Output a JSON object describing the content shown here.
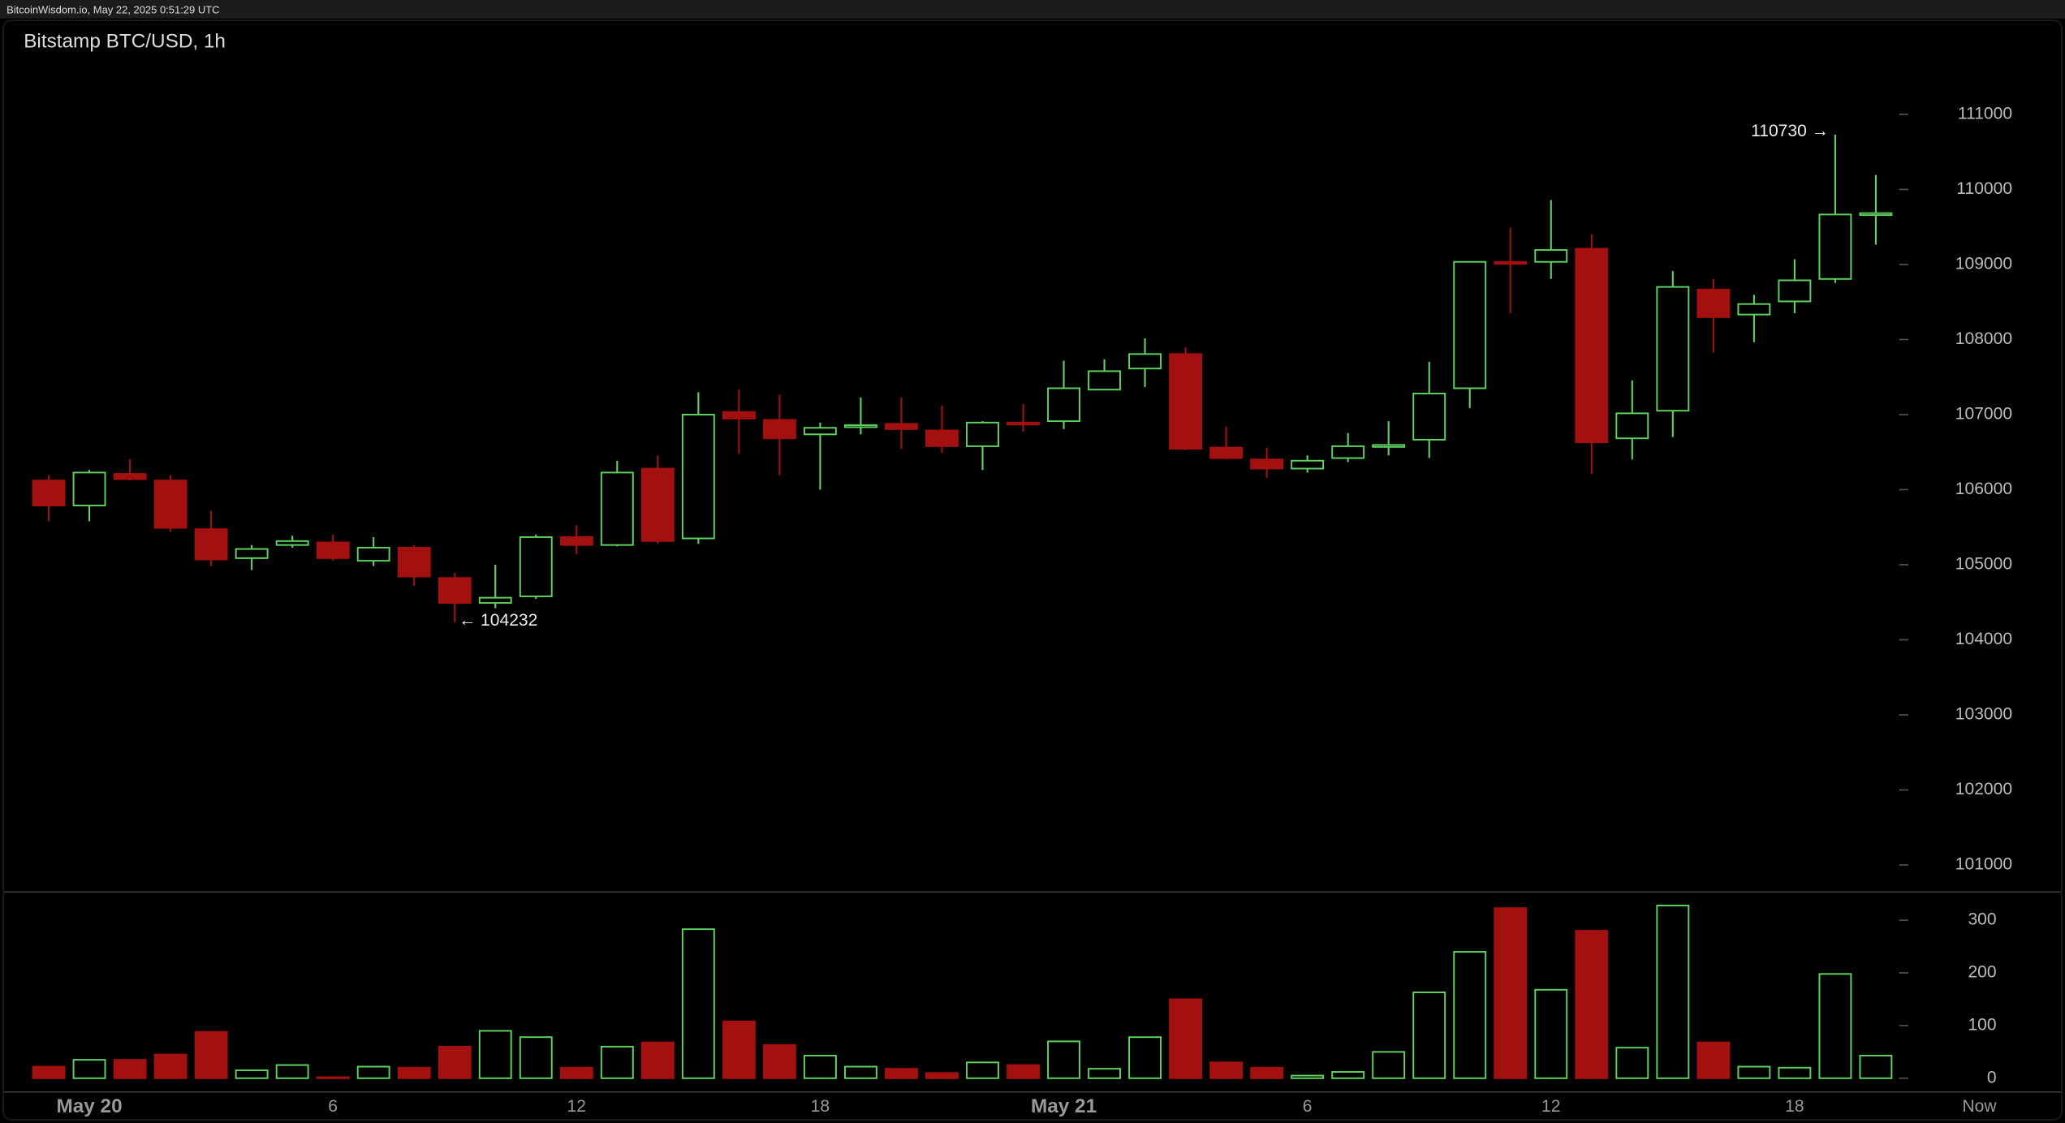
{
  "page_header": "BitcoinWisdom.io, May 22, 2025 0:51:29 UTC",
  "now_label": "Now",
  "annotations": [
    "110730 →",
    "← 104232"
  ],
  "chart_data": [
    {
      "type": "candlestick",
      "title": "Bitstamp BTC/USD, 1h",
      "categories": [
        null,
        "May 20",
        null,
        null,
        null,
        null,
        null,
        "6",
        null,
        null,
        null,
        null,
        null,
        "12",
        null,
        null,
        null,
        null,
        null,
        "18",
        null,
        null,
        null,
        null,
        null,
        "May 21",
        null,
        null,
        null,
        null,
        null,
        "6",
        null,
        null,
        null,
        null,
        null,
        "12",
        null,
        null,
        null,
        null,
        null,
        "18",
        null,
        null
      ],
      "open": [
        106122,
        105789,
        106210,
        106122,
        105474,
        105088,
        105263,
        105298,
        105053,
        105228,
        104824,
        104491,
        104579,
        105368,
        105263,
        106281,
        105351,
        107035,
        106930,
        106737,
        106842,
        106877,
        106789,
        106579,
        106894,
        106912,
        107333,
        107614,
        107807,
        106561,
        106403,
        106281,
        106421,
        106579,
        106666,
        107351,
        109035,
        109035,
        109210,
        106684,
        107052,
        108666,
        108333,
        108508,
        108807,
        109684
      ],
      "high": [
        106193,
        106263,
        106403,
        106193,
        105719,
        105263,
        105386,
        105403,
        105368,
        105263,
        104894,
        104999,
        105403,
        105526,
        106386,
        106456,
        107298,
        107333,
        107263,
        106894,
        107228,
        107228,
        107123,
        106912,
        107140,
        107719,
        107737,
        108017,
        107894,
        106842,
        106561,
        106456,
        106754,
        106912,
        107702,
        109035,
        109491,
        109859,
        109403,
        107456,
        108912,
        108807,
        108596,
        109070,
        110730,
        110193
      ],
      "low": [
        105579,
        105579,
        106122,
        105438,
        104982,
        104929,
        105228,
        105053,
        104982,
        104719,
        104232,
        104421,
        104544,
        105140,
        105245,
        105280,
        105280,
        106474,
        106193,
        106000,
        106737,
        106544,
        106491,
        106263,
        106772,
        106807,
        107333,
        107368,
        106526,
        106403,
        106158,
        106228,
        106368,
        106456,
        106421,
        107088,
        108351,
        108807,
        106210,
        106403,
        106701,
        107824,
        107965,
        108351,
        108754,
        109263
      ],
      "close": [
        105789,
        106228,
        106140,
        105491,
        105070,
        105210,
        105315,
        105088,
        105228,
        104842,
        104491,
        104561,
        105368,
        105263,
        106228,
        105315,
        107000,
        106947,
        106684,
        106824,
        106859,
        106807,
        106579,
        106894,
        106877,
        107351,
        107579,
        107807,
        106544,
        106421,
        106281,
        106386,
        106579,
        106596,
        107281,
        109035,
        109017,
        109193,
        106631,
        107017,
        108701,
        108298,
        108473,
        108789,
        109666,
        109684
      ],
      "up_color": "#5fd35f",
      "down_color": "#a31010",
      "ylim": [
        100650,
        112260
      ],
      "yticks": [
        101000,
        102000,
        103000,
        104000,
        105000,
        106000,
        107000,
        108000,
        109000,
        110000,
        111000
      ]
    },
    {
      "type": "bar",
      "values": [
        22,
        35,
        35,
        45,
        88,
        15,
        25,
        2,
        22,
        20,
        60,
        90,
        78,
        20,
        60,
        68,
        283,
        108,
        63,
        43,
        22,
        18,
        10,
        30,
        25,
        70,
        18,
        78,
        150,
        30,
        20,
        5,
        12,
        50,
        163,
        240,
        323,
        168,
        280,
        58,
        328,
        68,
        22,
        20,
        198,
        43
      ],
      "ylim": [
        0,
        355
      ],
      "yticks": [
        0,
        100,
        200,
        300
      ]
    }
  ]
}
